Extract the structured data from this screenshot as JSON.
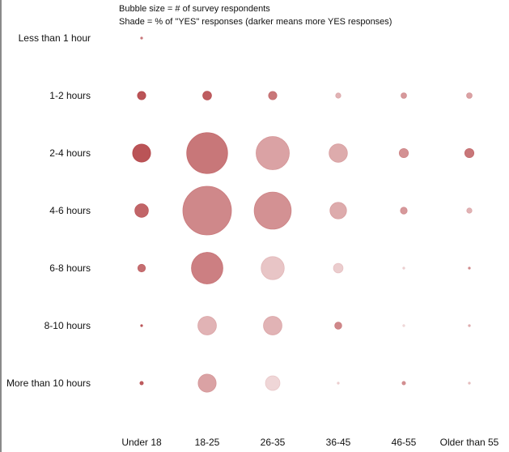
{
  "legend": {
    "size_note": "Bubble size = # of survey respondents",
    "shade_note": "Shade = % of \"YES\" responses (darker means more YES responses)"
  },
  "chart_data": {
    "type": "bubble",
    "x_categories": [
      "Under 18",
      "18-25",
      "26-35",
      "36-45",
      "46-55",
      "Older than 55"
    ],
    "y_categories": [
      "Less than 1 hour",
      "1-2 hours",
      "2-4 hours",
      "4-6 hours",
      "6-8 hours",
      "8-10 hours",
      "More than 10 hours"
    ],
    "size_measure": "# of survey respondents",
    "shade_measure": "% of \"YES\" responses",
    "base_color": "#b03a3e",
    "points": [
      {
        "x": "Under 18",
        "y": "Less than 1 hour",
        "size": 1,
        "shade": 0.6
      },
      {
        "x": "Under 18",
        "y": "1-2 hours",
        "size": 18,
        "shade": 0.85
      },
      {
        "x": "18-25",
        "y": "1-2 hours",
        "size": 20,
        "shade": 0.8
      },
      {
        "x": "26-35",
        "y": "1-2 hours",
        "size": 18,
        "shade": 0.65
      },
      {
        "x": "36-45",
        "y": "1-2 hours",
        "size": 7,
        "shade": 0.3
      },
      {
        "x": "46-55",
        "y": "1-2 hours",
        "size": 8,
        "shade": 0.45
      },
      {
        "x": "Older than 55",
        "y": "1-2 hours",
        "size": 8,
        "shade": 0.4
      },
      {
        "x": "Under 18",
        "y": "2-4 hours",
        "size": 85,
        "shade": 0.85
      },
      {
        "x": "18-25",
        "y": "2-4 hours",
        "size": 440,
        "shade": 0.65
      },
      {
        "x": "26-35",
        "y": "2-4 hours",
        "size": 290,
        "shade": 0.4
      },
      {
        "x": "36-45",
        "y": "2-4 hours",
        "size": 88,
        "shade": 0.35
      },
      {
        "x": "46-55",
        "y": "2-4 hours",
        "size": 22,
        "shade": 0.5
      },
      {
        "x": "Older than 55",
        "y": "2-4 hours",
        "size": 22,
        "shade": 0.65
      },
      {
        "x": "Under 18",
        "y": "4-6 hours",
        "size": 48,
        "shade": 0.75
      },
      {
        "x": "18-25",
        "y": "4-6 hours",
        "size": 620,
        "shade": 0.55
      },
      {
        "x": "26-35",
        "y": "4-6 hours",
        "size": 360,
        "shade": 0.5
      },
      {
        "x": "36-45",
        "y": "4-6 hours",
        "size": 72,
        "shade": 0.35
      },
      {
        "x": "46-55",
        "y": "4-6 hours",
        "size": 12,
        "shade": 0.45
      },
      {
        "x": "Older than 55",
        "y": "4-6 hours",
        "size": 7,
        "shade": 0.3
      },
      {
        "x": "Under 18",
        "y": "6-8 hours",
        "size": 15,
        "shade": 0.7
      },
      {
        "x": "18-25",
        "y": "6-8 hours",
        "size": 260,
        "shade": 0.6
      },
      {
        "x": "26-35",
        "y": "6-8 hours",
        "size": 140,
        "shade": 0.2
      },
      {
        "x": "36-45",
        "y": "6-8 hours",
        "size": 24,
        "shade": 0.15
      },
      {
        "x": "46-55",
        "y": "6-8 hours",
        "size": 1,
        "shade": 0.1
      },
      {
        "x": "Older than 55",
        "y": "6-8 hours",
        "size": 1,
        "shade": 0.5
      },
      {
        "x": "Under 18",
        "y": "8-10 hours",
        "size": 1,
        "shade": 0.8
      },
      {
        "x": "18-25",
        "y": "8-10 hours",
        "size": 90,
        "shade": 0.3
      },
      {
        "x": "26-35",
        "y": "8-10 hours",
        "size": 90,
        "shade": 0.3
      },
      {
        "x": "36-45",
        "y": "8-10 hours",
        "size": 13,
        "shade": 0.55
      },
      {
        "x": "46-55",
        "y": "8-10 hours",
        "size": 1,
        "shade": 0.05
      },
      {
        "x": "Older than 55",
        "y": "8-10 hours",
        "size": 1,
        "shade": 0.3
      },
      {
        "x": "Under 18",
        "y": "More than 10 hours",
        "size": 3,
        "shade": 0.8
      },
      {
        "x": "18-25",
        "y": "More than 10 hours",
        "size": 85,
        "shade": 0.4
      },
      {
        "x": "26-35",
        "y": "More than 10 hours",
        "size": 55,
        "shade": 0.1
      },
      {
        "x": "36-45",
        "y": "More than 10 hours",
        "size": 1,
        "shade": 0.1
      },
      {
        "x": "46-55",
        "y": "More than 10 hours",
        "size": 3,
        "shade": 0.5
      },
      {
        "x": "Older than 55",
        "y": "More than 10 hours",
        "size": 1,
        "shade": 0.2
      }
    ]
  }
}
